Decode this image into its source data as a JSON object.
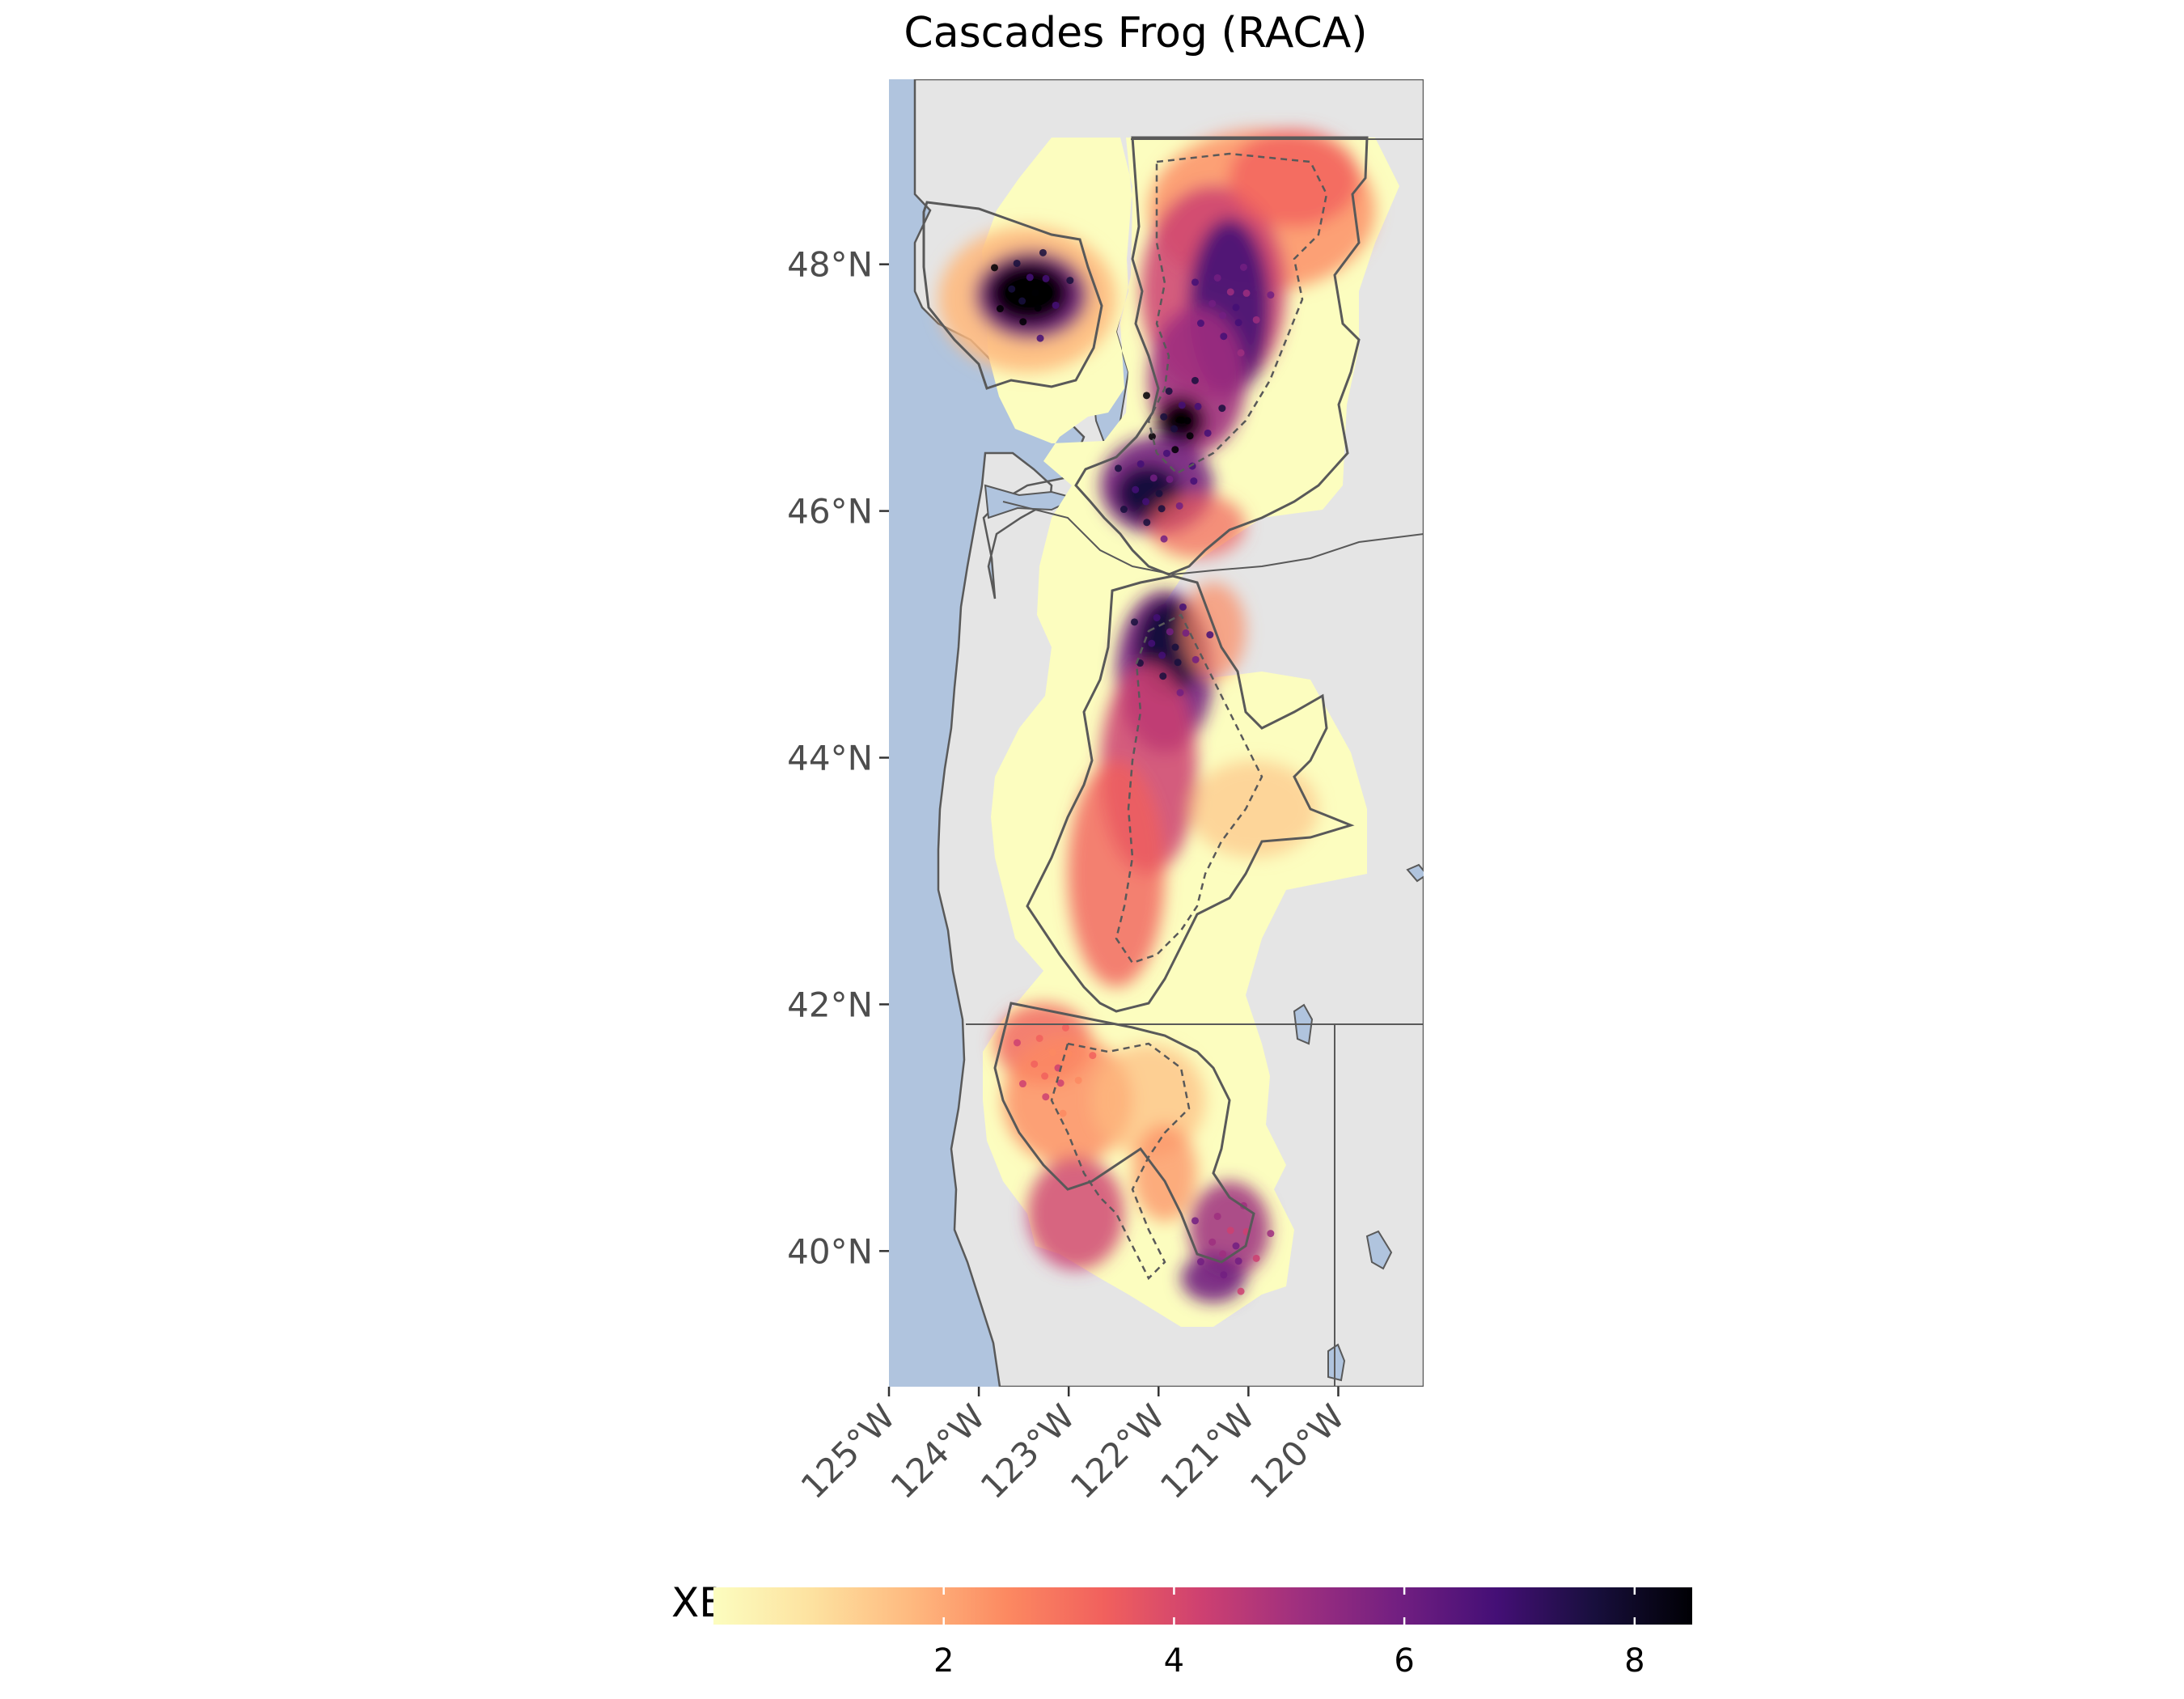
{
  "map": {
    "title": "Cascades Frog (RACA)",
    "colors": {
      "ocean": "#b0c4de",
      "land": "#e5e5e5",
      "outline": "#595959",
      "ramp": [
        "#fcfdbf",
        "#fde2a0",
        "#feba80",
        "#fc8961",
        "#f1605d",
        "#cd4071",
        "#9e2f7f",
        "#721f81",
        "#440f76",
        "#180f3d",
        "#000004"
      ]
    },
    "y_axis": {
      "ticks": [
        {
          "label": "48°N",
          "lat": 48
        },
        {
          "label": "46°N",
          "lat": 46
        },
        {
          "label": "44°N",
          "lat": 44
        },
        {
          "label": "42°N",
          "lat": 42
        },
        {
          "label": "40°N",
          "lat": 40
        }
      ]
    },
    "x_axis": {
      "ticks": [
        {
          "label": "125°W",
          "lon": -125
        },
        {
          "label": "124°W",
          "lon": -124
        },
        {
          "label": "123°W",
          "lon": -123
        },
        {
          "label": "122°W",
          "lon": -122
        },
        {
          "label": "121°W",
          "lon": -121
        },
        {
          "label": "120°W",
          "lon": -120
        }
      ]
    },
    "extent": {
      "lon_min": -125,
      "lon_max": -119.05,
      "lat_min": 38.9,
      "lat_max": 49.5
    }
  },
  "legend": {
    "title": "XB",
    "position": "bottom",
    "min": 0,
    "max": 8.5,
    "ticks": [
      {
        "label": "2",
        "value": 2
      },
      {
        "label": "4",
        "value": 4
      },
      {
        "label": "6",
        "value": 6
      },
      {
        "label": "8",
        "value": 8
      }
    ]
  }
}
